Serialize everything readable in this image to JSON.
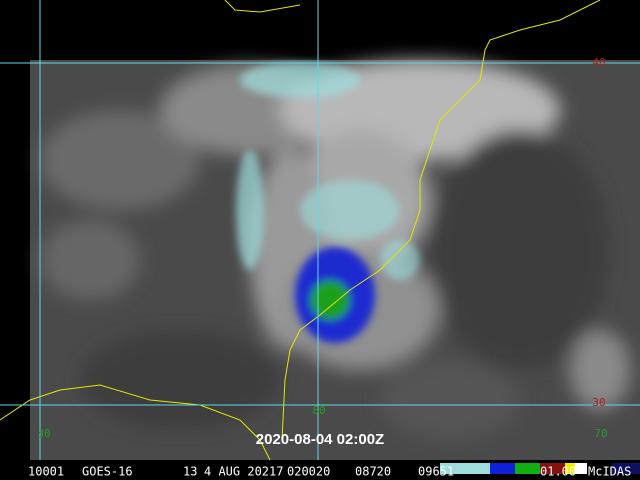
{
  "timestamp": "2020-08-04 02:00Z",
  "grid_labels": [
    {
      "text": "40",
      "color": "#b02020"
    },
    {
      "text": "30",
      "color": "#b02020"
    },
    {
      "text": "30",
      "color": "#2a9a2a"
    },
    {
      "text": "80",
      "color": "#2a9a2a"
    },
    {
      "text": "70",
      "color": "#2a9a2a"
    }
  ],
  "status_bar": {
    "fields": [
      "10001",
      "GOES-16",
      "13",
      "4 AUG 20217",
      "020020",
      "08720",
      "09651",
      "01.00"
    ],
    "brand": "McIDAS"
  }
}
